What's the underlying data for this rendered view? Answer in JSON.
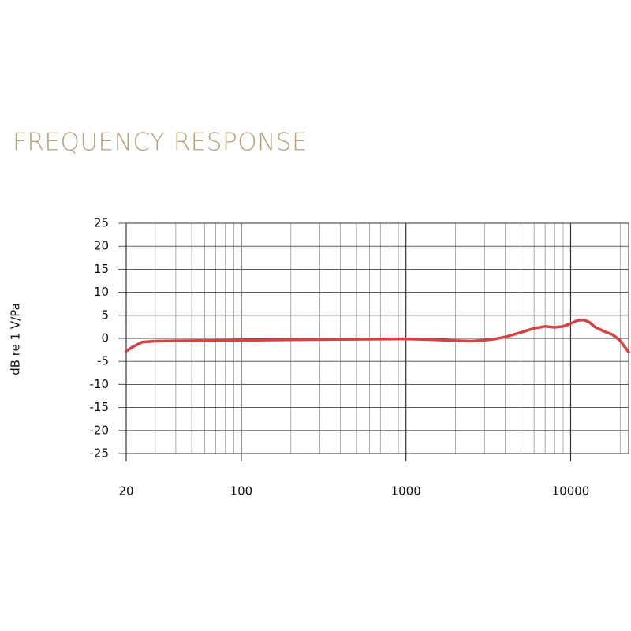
{
  "chart_data": {
    "type": "line",
    "title": "FREQUENCY RESPONSE",
    "y_label": "dB re 1 V/Pa",
    "log_x": true,
    "xlim": [
      20,
      22500
    ],
    "ylim": [
      -25,
      25
    ],
    "xticks": [
      20,
      100,
      1000,
      10000
    ],
    "yticks": [
      25,
      20,
      15,
      10,
      5,
      0,
      -5,
      -10,
      -15,
      -20,
      -25
    ],
    "xgrid": [
      20,
      30,
      40,
      50,
      60,
      70,
      80,
      90,
      100,
      200,
      300,
      400,
      500,
      600,
      700,
      800,
      900,
      1000,
      2000,
      3000,
      4000,
      5000,
      6000,
      7000,
      8000,
      9000,
      10000,
      20000
    ],
    "grid": true,
    "series": [
      {
        "name": "Frequency response",
        "color": "#d94040",
        "x": [
          20,
          22,
          25,
          30,
          50,
          100,
          200,
          500,
          1000,
          1500,
          2000,
          2500,
          3000,
          3500,
          4000,
          5000,
          6000,
          7000,
          8000,
          9000,
          10000,
          11000,
          12000,
          13000,
          14000,
          16000,
          18000,
          20000,
          22500
        ],
        "values": [
          -2.8,
          -1.8,
          -0.8,
          -0.6,
          -0.5,
          -0.4,
          -0.3,
          -0.2,
          -0.1,
          -0.3,
          -0.5,
          -0.6,
          -0.4,
          -0.1,
          0.3,
          1.3,
          2.2,
          2.6,
          2.4,
          2.6,
          3.2,
          3.9,
          4.0,
          3.5,
          2.5,
          1.5,
          0.8,
          -0.5,
          -3.0
        ]
      }
    ]
  }
}
